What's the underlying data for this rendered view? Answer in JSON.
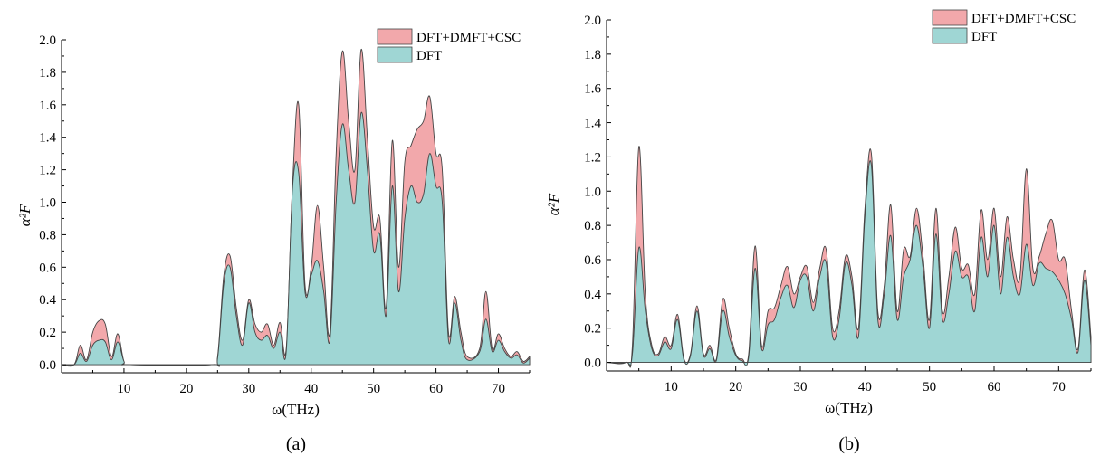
{
  "chart_data": [
    {
      "type": "area",
      "panel_label": "(a)",
      "xlabel": "ω(THz)",
      "ylabel": "α²F",
      "xlim": [
        0,
        75
      ],
      "ylim": [
        -0.05,
        2.0
      ],
      "xticks": [
        10,
        20,
        30,
        40,
        50,
        60,
        70
      ],
      "yticks": [
        0.0,
        0.2,
        0.4,
        0.6,
        0.8,
        1.0,
        1.2,
        1.4,
        1.6,
        1.8,
        2.0
      ],
      "ytick_labels": [
        "0.0",
        "0.2",
        "0.4",
        "0.6",
        "0.8",
        "1.0",
        "1.2",
        "1.4",
        "1.6",
        "1.8",
        "2.0"
      ],
      "legend_position": "top-right",
      "series": [
        {
          "name": "DFT+DMFT+CSC",
          "color": "#f2a8ab",
          "points": [
            [
              0,
              0
            ],
            [
              2,
              0
            ],
            [
              3,
              0.12
            ],
            [
              4,
              0.03
            ],
            [
              5,
              0.2
            ],
            [
              6,
              0.27
            ],
            [
              7,
              0.25
            ],
            [
              8,
              0.05
            ],
            [
              9,
              0.19
            ],
            [
              10,
              0.02
            ],
            [
              11,
              0
            ],
            [
              24,
              0
            ],
            [
              25,
              0.05
            ],
            [
              26,
              0.55
            ],
            [
              27,
              0.67
            ],
            [
              28,
              0.35
            ],
            [
              29,
              0.15
            ],
            [
              30,
              0.4
            ],
            [
              31,
              0.25
            ],
            [
              32,
              0.2
            ],
            [
              33,
              0.25
            ],
            [
              34,
              0.12
            ],
            [
              35,
              0.26
            ],
            [
              36,
              0.1
            ],
            [
              37,
              1.1
            ],
            [
              38,
              1.6
            ],
            [
              39,
              0.5
            ],
            [
              40,
              0.6
            ],
            [
              41,
              0.98
            ],
            [
              42,
              0.6
            ],
            [
              43,
              0.2
            ],
            [
              44,
              1.3
            ],
            [
              45,
              1.93
            ],
            [
              46,
              1.5
            ],
            [
              47,
              1.2
            ],
            [
              48,
              1.94
            ],
            [
              49,
              1.4
            ],
            [
              50,
              0.85
            ],
            [
              51,
              0.9
            ],
            [
              52,
              0.35
            ],
            [
              53,
              1.38
            ],
            [
              54,
              0.6
            ],
            [
              55,
              1.25
            ],
            [
              56,
              1.35
            ],
            [
              57,
              1.45
            ],
            [
              58,
              1.5
            ],
            [
              59,
              1.65
            ],
            [
              60,
              1.3
            ],
            [
              61,
              1.2
            ],
            [
              62,
              0.2
            ],
            [
              63,
              0.42
            ],
            [
              64,
              0.2
            ],
            [
              65,
              0.05
            ],
            [
              67,
              0.1
            ],
            [
              68,
              0.45
            ],
            [
              69,
              0.1
            ],
            [
              70,
              0.19
            ],
            [
              71,
              0.1
            ],
            [
              72,
              0.05
            ],
            [
              73,
              0.08
            ],
            [
              74,
              0.02
            ],
            [
              75,
              0.05
            ]
          ]
        },
        {
          "name": "DFT",
          "color": "#9fd6d4",
          "points": [
            [
              0,
              0
            ],
            [
              2,
              0
            ],
            [
              3,
              0.07
            ],
            [
              4,
              0.02
            ],
            [
              5,
              0.12
            ],
            [
              6,
              0.15
            ],
            [
              7,
              0.14
            ],
            [
              8,
              0.03
            ],
            [
              9,
              0.14
            ],
            [
              10,
              0.02
            ],
            [
              11,
              0
            ],
            [
              24,
              0
            ],
            [
              25,
              0.04
            ],
            [
              26,
              0.5
            ],
            [
              27,
              0.6
            ],
            [
              28,
              0.3
            ],
            [
              29,
              0.12
            ],
            [
              30,
              0.38
            ],
            [
              31,
              0.2
            ],
            [
              32,
              0.15
            ],
            [
              33,
              0.18
            ],
            [
              34,
              0.1
            ],
            [
              35,
              0.2
            ],
            [
              36,
              0.08
            ],
            [
              37,
              1.08
            ],
            [
              38,
              1.18
            ],
            [
              39,
              0.45
            ],
            [
              40,
              0.55
            ],
            [
              41,
              0.64
            ],
            [
              42,
              0.45
            ],
            [
              43,
              0.15
            ],
            [
              44,
              1.0
            ],
            [
              45,
              1.48
            ],
            [
              46,
              1.2
            ],
            [
              47,
              1.0
            ],
            [
              48,
              1.55
            ],
            [
              49,
              1.2
            ],
            [
              50,
              0.7
            ],
            [
              51,
              0.8
            ],
            [
              52,
              0.3
            ],
            [
              53,
              1.1
            ],
            [
              54,
              0.45
            ],
            [
              55,
              0.9
            ],
            [
              56,
              1.1
            ],
            [
              57,
              1.0
            ],
            [
              58,
              1.05
            ],
            [
              59,
              1.3
            ],
            [
              60,
              1.1
            ],
            [
              61,
              1.0
            ],
            [
              62,
              0.15
            ],
            [
              63,
              0.38
            ],
            [
              64,
              0.15
            ],
            [
              65,
              0.03
            ],
            [
              67,
              0.08
            ],
            [
              68,
              0.28
            ],
            [
              69,
              0.08
            ],
            [
              70,
              0.15
            ],
            [
              71,
              0.08
            ],
            [
              72,
              0.04
            ],
            [
              73,
              0.06
            ],
            [
              74,
              0.01
            ],
            [
              75,
              0.04
            ]
          ]
        }
      ]
    },
    {
      "type": "area",
      "panel_label": "(b)",
      "xlabel": "ω(THz)",
      "ylabel": "α²F",
      "xlim": [
        0,
        75
      ],
      "ylim": [
        -0.05,
        2.0
      ],
      "xticks": [
        10,
        20,
        30,
        40,
        50,
        60,
        70
      ],
      "yticks": [
        0.0,
        0.2,
        0.4,
        0.6,
        0.8,
        1.0,
        1.2,
        1.4,
        1.6,
        1.8,
        2.0
      ],
      "ytick_labels": [
        "0.0",
        "0.2",
        "0.4",
        "0.6",
        "0.8",
        "1.0",
        "1.2",
        "1.4",
        "1.6",
        "1.8",
        "2.0"
      ],
      "legend_position": "top-right",
      "series": [
        {
          "name": "DFT+DMFT+CSC",
          "color": "#f2a8ab",
          "points": [
            [
              0,
              0
            ],
            [
              3,
              0
            ],
            [
              4,
              0.1
            ],
            [
              5,
              1.26
            ],
            [
              6,
              0.4
            ],
            [
              7,
              0.1
            ],
            [
              8,
              0.05
            ],
            [
              9,
              0.15
            ],
            [
              10,
              0.1
            ],
            [
              11,
              0.28
            ],
            [
              12,
              0.02
            ],
            [
              13,
              0.05
            ],
            [
              14,
              0.33
            ],
            [
              15,
              0.05
            ],
            [
              16,
              0.1
            ],
            [
              17,
              0.02
            ],
            [
              18,
              0.37
            ],
            [
              19,
              0.2
            ],
            [
              20,
              0.05
            ],
            [
              21,
              0.02
            ],
            [
              22,
              0.05
            ],
            [
              23,
              0.68
            ],
            [
              24,
              0.1
            ],
            [
              25,
              0.3
            ],
            [
              26,
              0.32
            ],
            [
              27,
              0.45
            ],
            [
              28,
              0.56
            ],
            [
              29,
              0.4
            ],
            [
              30,
              0.5
            ],
            [
              31,
              0.56
            ],
            [
              32,
              0.35
            ],
            [
              33,
              0.55
            ],
            [
              34,
              0.66
            ],
            [
              35,
              0.2
            ],
            [
              36,
              0.3
            ],
            [
              37,
              0.62
            ],
            [
              38,
              0.5
            ],
            [
              39,
              0.2
            ],
            [
              40,
              0.9
            ],
            [
              41,
              1.22
            ],
            [
              42,
              0.3
            ],
            [
              43,
              0.45
            ],
            [
              44,
              0.92
            ],
            [
              45,
              0.3
            ],
            [
              46,
              0.66
            ],
            [
              47,
              0.62
            ],
            [
              48,
              0.9
            ],
            [
              49,
              0.62
            ],
            [
              50,
              0.25
            ],
            [
              51,
              0.9
            ],
            [
              52,
              0.3
            ],
            [
              53,
              0.5
            ],
            [
              54,
              0.79
            ],
            [
              55,
              0.55
            ],
            [
              56,
              0.57
            ],
            [
              57,
              0.4
            ],
            [
              58,
              0.89
            ],
            [
              59,
              0.6
            ],
            [
              60,
              0.9
            ],
            [
              61,
              0.5
            ],
            [
              62,
              0.85
            ],
            [
              63,
              0.6
            ],
            [
              64,
              0.5
            ],
            [
              65,
              1.13
            ],
            [
              66,
              0.55
            ],
            [
              67,
              0.62
            ],
            [
              68,
              0.75
            ],
            [
              69,
              0.83
            ],
            [
              70,
              0.6
            ],
            [
              71,
              0.6
            ],
            [
              72,
              0.3
            ],
            [
              73,
              0.08
            ],
            [
              74,
              0.54
            ],
            [
              75,
              0.15
            ]
          ]
        },
        {
          "name": "DFT",
          "color": "#9fd6d4",
          "points": [
            [
              0,
              0
            ],
            [
              3,
              0
            ],
            [
              4,
              0.05
            ],
            [
              5,
              0.67
            ],
            [
              6,
              0.3
            ],
            [
              7,
              0.08
            ],
            [
              8,
              0.04
            ],
            [
              9,
              0.12
            ],
            [
              10,
              0.08
            ],
            [
              11,
              0.25
            ],
            [
              12,
              0.01
            ],
            [
              13,
              0.04
            ],
            [
              14,
              0.3
            ],
            [
              15,
              0.04
            ],
            [
              16,
              0.08
            ],
            [
              17,
              0.01
            ],
            [
              18,
              0.3
            ],
            [
              19,
              0.15
            ],
            [
              20,
              0.04
            ],
            [
              21,
              0.01
            ],
            [
              22,
              0.03
            ],
            [
              23,
              0.55
            ],
            [
              24,
              0.08
            ],
            [
              25,
              0.22
            ],
            [
              26,
              0.25
            ],
            [
              27,
              0.38
            ],
            [
              28,
              0.45
            ],
            [
              29,
              0.32
            ],
            [
              30,
              0.48
            ],
            [
              31,
              0.5
            ],
            [
              32,
              0.3
            ],
            [
              33,
              0.5
            ],
            [
              34,
              0.58
            ],
            [
              35,
              0.15
            ],
            [
              36,
              0.25
            ],
            [
              37,
              0.58
            ],
            [
              38,
              0.45
            ],
            [
              39,
              0.15
            ],
            [
              40,
              0.85
            ],
            [
              41,
              1.15
            ],
            [
              42,
              0.25
            ],
            [
              43,
              0.4
            ],
            [
              44,
              0.74
            ],
            [
              45,
              0.25
            ],
            [
              46,
              0.5
            ],
            [
              47,
              0.6
            ],
            [
              48,
              0.8
            ],
            [
              49,
              0.55
            ],
            [
              50,
              0.2
            ],
            [
              51,
              0.75
            ],
            [
              52,
              0.25
            ],
            [
              53,
              0.4
            ],
            [
              54,
              0.65
            ],
            [
              55,
              0.5
            ],
            [
              56,
              0.5
            ],
            [
              57,
              0.3
            ],
            [
              58,
              0.73
            ],
            [
              59,
              0.5
            ],
            [
              60,
              0.8
            ],
            [
              61,
              0.4
            ],
            [
              62,
              0.73
            ],
            [
              63,
              0.5
            ],
            [
              64,
              0.4
            ],
            [
              65,
              0.69
            ],
            [
              66,
              0.45
            ],
            [
              67,
              0.58
            ],
            [
              68,
              0.55
            ],
            [
              69,
              0.53
            ],
            [
              70,
              0.48
            ],
            [
              71,
              0.4
            ],
            [
              72,
              0.25
            ],
            [
              73,
              0.06
            ],
            [
              74,
              0.48
            ],
            [
              75,
              0.1
            ]
          ]
        }
      ]
    }
  ]
}
